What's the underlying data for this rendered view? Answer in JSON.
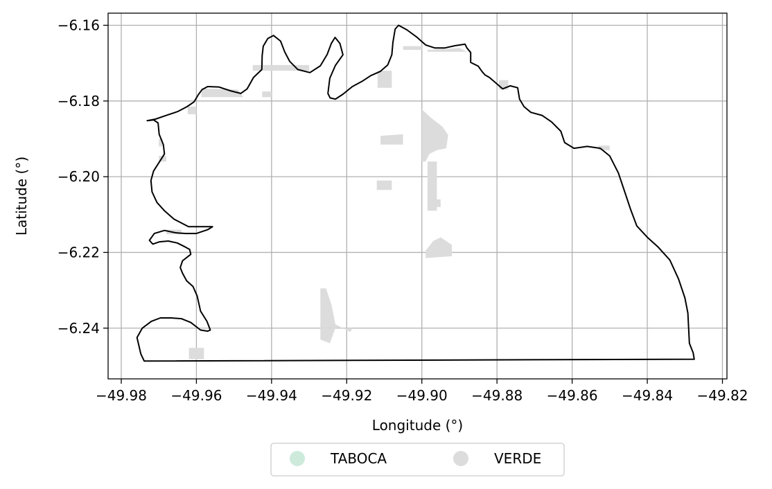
{
  "chart_data": {
    "type": "map",
    "xlabel": "Longitude (°)",
    "ylabel": "Latitude (°)",
    "xlim": [
      -49.9835,
      -49.8188
    ],
    "ylim": [
      -6.2534,
      -6.1568
    ],
    "xticks": [
      -49.98,
      -49.96,
      -49.94,
      -49.92,
      -49.9,
      -49.88,
      -49.86,
      -49.84,
      -49.82
    ],
    "xtick_labels": [
      "−49.98",
      "−49.96",
      "−49.94",
      "−49.92",
      "−49.90",
      "−49.88",
      "−49.86",
      "−49.84",
      "−49.82"
    ],
    "yticks": [
      -6.16,
      -6.18,
      -6.2,
      -6.22,
      -6.24
    ],
    "ytick_labels": [
      "−6.16",
      "−6.18",
      "−6.20",
      "−6.22",
      "−6.24"
    ],
    "grid": true,
    "legend_position": "bottom-center, below plot",
    "legend": [
      {
        "label": "TABOCA",
        "color": "#cdeadb"
      },
      {
        "label": "VERDE",
        "color": "#dcdcdc"
      }
    ],
    "boundary": [
      [
        -49.9739,
        -6.2487
      ],
      [
        -49.9748,
        -6.2468
      ],
      [
        -49.9758,
        -6.2425
      ],
      [
        -49.9744,
        -6.24
      ],
      [
        -49.972,
        -6.2382
      ],
      [
        -49.9696,
        -6.2373
      ],
      [
        -49.9667,
        -6.2373
      ],
      [
        -49.964,
        -6.2375
      ],
      [
        -49.9615,
        -6.2385
      ],
      [
        -49.9589,
        -6.2405
      ],
      [
        -49.957,
        -6.2408
      ],
      [
        -49.9563,
        -6.2405
      ],
      [
        -49.9572,
        -6.2382
      ],
      [
        -49.9589,
        -6.2355
      ],
      [
        -49.9598,
        -6.2315
      ],
      [
        -49.9609,
        -6.229
      ],
      [
        -49.9626,
        -6.2275
      ],
      [
        -49.9637,
        -6.2255
      ],
      [
        -49.9643,
        -6.224
      ],
      [
        -49.9637,
        -6.2222
      ],
      [
        -49.9615,
        -6.2205
      ],
      [
        -49.9618,
        -6.2192
      ],
      [
        -49.9631,
        -6.2185
      ],
      [
        -49.9651,
        -6.2175
      ],
      [
        -49.9675,
        -6.217
      ],
      [
        -49.9698,
        -6.2172
      ],
      [
        -49.9716,
        -6.2178
      ],
      [
        -49.9725,
        -6.2168
      ],
      [
        -49.9712,
        -6.215
      ],
      [
        -49.9685,
        -6.2142
      ],
      [
        -49.9656,
        -6.2148
      ],
      [
        -49.9629,
        -6.215
      ],
      [
        -49.96,
        -6.215
      ],
      [
        -49.957,
        -6.214
      ],
      [
        -49.9557,
        -6.2132
      ],
      [
        -49.9582,
        -6.2132
      ],
      [
        -49.9621,
        -6.2132
      ],
      [
        -49.966,
        -6.2112
      ],
      [
        -49.9685,
        -6.209
      ],
      [
        -49.9705,
        -6.2068
      ],
      [
        -49.9718,
        -6.204
      ],
      [
        -49.9721,
        -6.201
      ],
      [
        -49.9714,
        -6.1985
      ],
      [
        -49.9698,
        -6.196
      ],
      [
        -49.9685,
        -6.194
      ],
      [
        -49.9688,
        -6.1915
      ],
      [
        -49.9699,
        -6.1888
      ],
      [
        -49.9702,
        -6.1858
      ],
      [
        -49.9714,
        -6.185
      ],
      [
        -49.9731,
        -6.1852
      ],
      [
        -49.9709,
        -6.1848
      ],
      [
        -49.968,
        -6.1838
      ],
      [
        -49.965,
        -6.1828
      ],
      [
        -49.9625,
        -6.1815
      ],
      [
        -49.9606,
        -6.1802
      ],
      [
        -49.9596,
        -6.1785
      ],
      [
        -49.9585,
        -6.177
      ],
      [
        -49.957,
        -6.1762
      ],
      [
        -49.954,
        -6.1763
      ],
      [
        -49.951,
        -6.1773
      ],
      [
        -49.9482,
        -6.178
      ],
      [
        -49.9465,
        -6.1768
      ],
      [
        -49.9448,
        -6.1738
      ],
      [
        -49.9426,
        -6.1717
      ],
      [
        -49.9425,
        -6.168
      ],
      [
        -49.9422,
        -6.1655
      ],
      [
        -49.941,
        -6.1635
      ],
      [
        -49.9395,
        -6.1627
      ],
      [
        -49.9376,
        -6.1642
      ],
      [
        -49.9365,
        -6.167
      ],
      [
        -49.9352,
        -6.1695
      ],
      [
        -49.933,
        -6.1717
      ],
      [
        -49.9298,
        -6.1725
      ],
      [
        -49.927,
        -6.1707
      ],
      [
        -49.9252,
        -6.1677
      ],
      [
        -49.9241,
        -6.1648
      ],
      [
        -49.9231,
        -6.1632
      ],
      [
        -49.9218,
        -6.1648
      ],
      [
        -49.921,
        -6.1678
      ],
      [
        -49.923,
        -6.1706
      ],
      [
        -49.9245,
        -6.174
      ],
      [
        -49.925,
        -6.178
      ],
      [
        -49.9244,
        -6.1792
      ],
      [
        -49.923,
        -6.1795
      ],
      [
        -49.921,
        -6.1782
      ],
      [
        -49.9185,
        -6.1762
      ],
      [
        -49.9159,
        -6.1748
      ],
      [
        -49.9136,
        -6.1733
      ],
      [
        -49.9111,
        -6.1722
      ],
      [
        -49.9091,
        -6.1705
      ],
      [
        -49.908,
        -6.1678
      ],
      [
        -49.9077,
        -6.1645
      ],
      [
        -49.9071,
        -6.161
      ],
      [
        -49.9062,
        -6.16
      ],
      [
        -49.904,
        -6.1612
      ],
      [
        -49.9015,
        -6.163
      ],
      [
        -49.899,
        -6.1652
      ],
      [
        -49.8965,
        -6.166
      ],
      [
        -49.894,
        -6.166
      ],
      [
        -49.8912,
        -6.1654
      ],
      [
        -49.8885,
        -6.165
      ],
      [
        -49.888,
        -6.166
      ],
      [
        -49.887,
        -6.1672
      ],
      [
        -49.887,
        -6.1698
      ],
      [
        -49.885,
        -6.1708
      ],
      [
        -49.884,
        -6.1722
      ],
      [
        -49.8832,
        -6.1731
      ],
      [
        -49.882,
        -6.1738
      ],
      [
        -49.88,
        -6.1755
      ],
      [
        -49.8785,
        -6.1768
      ],
      [
        -49.8765,
        -6.176
      ],
      [
        -49.8745,
        -6.1765
      ],
      [
        -49.874,
        -6.1795
      ],
      [
        -49.8728,
        -6.1815
      ],
      [
        -49.871,
        -6.183
      ],
      [
        -49.868,
        -6.1838
      ],
      [
        -49.8655,
        -6.1855
      ],
      [
        -49.863,
        -6.188
      ],
      [
        -49.862,
        -6.191
      ],
      [
        -49.8595,
        -6.1925
      ],
      [
        -49.856,
        -6.192
      ],
      [
        -49.8525,
        -6.1925
      ],
      [
        -49.85,
        -6.1945
      ],
      [
        -49.8477,
        -6.199
      ],
      [
        -49.846,
        -6.204
      ],
      [
        -49.8445,
        -6.2085
      ],
      [
        -49.8428,
        -6.213
      ],
      [
        -49.84,
        -6.216
      ],
      [
        -49.8372,
        -6.2185
      ],
      [
        -49.834,
        -6.222
      ],
      [
        -49.8317,
        -6.227
      ],
      [
        -49.83,
        -6.232
      ],
      [
        -49.8292,
        -6.236
      ],
      [
        -49.829,
        -6.24
      ],
      [
        -49.8288,
        -6.244
      ],
      [
        -49.8278,
        -6.2465
      ],
      [
        -49.8275,
        -6.2482
      ],
      [
        -49.9739,
        -6.2487
      ]
    ],
    "verde_patches": [
      [
        [
          -49.945,
          -6.1705
        ],
        [
          -49.93,
          -6.1705
        ],
        [
          -49.93,
          -6.172
        ],
        [
          -49.945,
          -6.172
        ]
      ],
      [
        [
          -49.9425,
          -6.1775
        ],
        [
          -49.94,
          -6.1775
        ],
        [
          -49.94,
          -6.179
        ],
        [
          -49.9425,
          -6.179
        ]
      ],
      [
        [
          -49.9587,
          -6.1767
        ],
        [
          -49.949,
          -6.177
        ],
        [
          -49.9475,
          -6.179
        ],
        [
          -49.9587,
          -6.179
        ]
      ],
      [
        [
          -49.9623,
          -6.1815
        ],
        [
          -49.96,
          -6.1815
        ],
        [
          -49.96,
          -6.1835
        ],
        [
          -49.9623,
          -6.1835
        ]
      ],
      [
        [
          -49.9118,
          -6.172
        ],
        [
          -49.908,
          -6.172
        ],
        [
          -49.908,
          -6.1765
        ],
        [
          -49.9118,
          -6.1765
        ]
      ],
      [
        [
          -49.905,
          -6.1655
        ],
        [
          -49.9,
          -6.1655
        ],
        [
          -49.9,
          -6.1665
        ],
        [
          -49.905,
          -6.1665
        ]
      ],
      [
        [
          -49.8985,
          -6.1665
        ],
        [
          -49.89,
          -6.166
        ],
        [
          -49.888,
          -6.167
        ],
        [
          -49.8985,
          -6.167
        ]
      ],
      [
        [
          -49.911,
          -6.1892
        ],
        [
          -49.905,
          -6.1888
        ],
        [
          -49.905,
          -6.1915
        ],
        [
          -49.911,
          -6.1915
        ]
      ],
      [
        [
          -49.9,
          -6.1822
        ],
        [
          -49.8975,
          -6.1845
        ],
        [
          -49.8945,
          -6.1868
        ],
        [
          -49.893,
          -6.189
        ],
        [
          -49.8935,
          -6.1925
        ],
        [
          -49.896,
          -6.193
        ],
        [
          -49.898,
          -6.194
        ],
        [
          -49.899,
          -6.196
        ],
        [
          -49.9,
          -6.196
        ]
      ],
      [
        [
          -49.8985,
          -6.196
        ],
        [
          -49.896,
          -6.196
        ],
        [
          -49.896,
          -6.209
        ],
        [
          -49.8985,
          -6.209
        ]
      ],
      [
        [
          -49.8975,
          -6.206
        ],
        [
          -49.895,
          -6.206
        ],
        [
          -49.895,
          -6.208
        ],
        [
          -49.8975,
          -6.208
        ]
      ],
      [
        [
          -49.899,
          -6.2195
        ],
        [
          -49.897,
          -6.217
        ],
        [
          -49.895,
          -6.216
        ],
        [
          -49.892,
          -6.218
        ],
        [
          -49.892,
          -6.221
        ],
        [
          -49.899,
          -6.2215
        ]
      ],
      [
        [
          -49.912,
          -6.201
        ],
        [
          -49.908,
          -6.201
        ],
        [
          -49.908,
          -6.2035
        ],
        [
          -49.912,
          -6.2035
        ]
      ],
      [
        [
          -49.927,
          -6.2295
        ],
        [
          -49.9255,
          -6.2295
        ],
        [
          -49.924,
          -6.234
        ],
        [
          -49.923,
          -6.239
        ],
        [
          -49.921,
          -6.24
        ],
        [
          -49.919,
          -6.241
        ],
        [
          -49.9185,
          -6.24
        ],
        [
          -49.927,
          -6.24
        ]
      ],
      [
        [
          -49.927,
          -6.24
        ],
        [
          -49.923,
          -6.24
        ],
        [
          -49.9245,
          -6.244
        ],
        [
          -49.927,
          -6.243
        ]
      ],
      [
        [
          -49.962,
          -6.2452
        ],
        [
          -49.958,
          -6.2452
        ],
        [
          -49.958,
          -6.2482
        ],
        [
          -49.962,
          -6.2482
        ]
      ],
      [
        [
          -49.97,
          -6.19
        ],
        [
          -49.969,
          -6.19
        ],
        [
          -49.969,
          -6.192
        ],
        [
          -49.97,
          -6.192
        ]
      ],
      [
        [
          -49.97,
          -6.1945
        ],
        [
          -49.968,
          -6.1945
        ],
        [
          -49.968,
          -6.196
        ],
        [
          -49.97,
          -6.196
        ]
      ],
      [
        [
          -49.968,
          -6.214
        ],
        [
          -49.964,
          -6.214
        ],
        [
          -49.964,
          -6.2152
        ],
        [
          -49.968,
          -6.2152
        ]
      ],
      [
        [
          -49.8795,
          -6.1745
        ],
        [
          -49.877,
          -6.1745
        ],
        [
          -49.877,
          -6.177
        ],
        [
          -49.8795,
          -6.177
        ]
      ],
      [
        [
          -49.853,
          -6.1918
        ],
        [
          -49.85,
          -6.1918
        ],
        [
          -49.85,
          -6.193
        ],
        [
          -49.853,
          -6.193
        ]
      ]
    ]
  }
}
